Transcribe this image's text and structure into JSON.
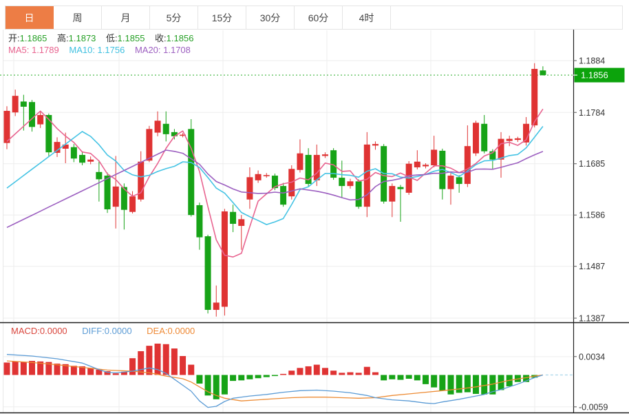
{
  "tabs": [
    {
      "key": "day",
      "label": "日",
      "selected": true
    },
    {
      "key": "week",
      "label": "周",
      "selected": false
    },
    {
      "key": "month",
      "label": "月",
      "selected": false
    },
    {
      "key": "5min",
      "label": "5分",
      "selected": false
    },
    {
      "key": "15min",
      "label": "15分",
      "selected": false
    },
    {
      "key": "30min",
      "label": "30分",
      "selected": false
    },
    {
      "key": "60min",
      "label": "60分",
      "selected": false
    },
    {
      "key": "4hour",
      "label": "4时",
      "selected": false
    }
  ],
  "ohlc": {
    "open_label": "开:",
    "open": "1.1865",
    "high_label": "高:",
    "high": "1.1873",
    "low_label": "低:",
    "low": "1.1855",
    "close_label": "收:",
    "close": "1.1856"
  },
  "ma_readout": {
    "ma5_label": "MA5: ",
    "ma5": "1.1789",
    "ma10_label": "MA10: ",
    "ma10": "1.1756",
    "ma20_label": "MA20: ",
    "ma20": "1.1708"
  },
  "macd_readout": {
    "macd_label": "MACD:",
    "macd": "0.0000",
    "diff_label": "DIFF:",
    "diff": "0.0000",
    "dea_label": "DEA:",
    "dea": "0.0000"
  },
  "colors": {
    "up": "#DF3333",
    "down": "#17A317",
    "ma5": "#E8638F",
    "ma10": "#44C3E4",
    "ma20": "#9C5FC0",
    "diff": "#5B9BD5",
    "dea": "#ED8B33",
    "tab_active_bg": "#ED7D45",
    "badge_bg": "#0CA30C",
    "current_line": "#3CB43C",
    "grid": "#EDEDED",
    "axis": "#222222",
    "text": "#333333"
  },
  "chart_data": [
    {
      "type": "candlestick",
      "title": "daily candlestick price panel",
      "ylabel": "price",
      "price_ticks": [
        1.1884,
        1.1784,
        1.1685,
        1.1586,
        1.1487,
        1.1387
      ],
      "current_price": 1.1856,
      "ma5_last": 1.1789,
      "ma10_last": 1.1756,
      "ma20_last": 1.1708,
      "ma_seeds": {
        "ma5": 1.1728,
        "ma10": 1.1638,
        "ma20": 1.1562
      },
      "candles": [
        [
          1.1725,
          1.1796,
          1.1713,
          1.1787
        ],
        [
          1.1784,
          1.1828,
          1.1777,
          1.1816
        ],
        [
          1.1805,
          1.1818,
          1.1749,
          1.1795
        ],
        [
          1.1804,
          1.1808,
          1.1747,
          1.1756
        ],
        [
          1.1761,
          1.1786,
          1.1754,
          1.1779
        ],
        [
          1.1779,
          1.1782,
          1.17,
          1.1707
        ],
        [
          1.1706,
          1.1736,
          1.1698,
          1.1727
        ],
        [
          1.1714,
          1.1745,
          1.1686,
          1.1722
        ],
        [
          1.1717,
          1.1723,
          1.1688,
          1.1695
        ],
        [
          1.1702,
          1.1709,
          1.1682,
          1.1687
        ],
        [
          1.1689,
          1.1699,
          1.1684,
          1.1693
        ],
        [
          1.1669,
          1.169,
          1.1612,
          1.1655
        ],
        [
          1.1662,
          1.1668,
          1.159,
          1.1597
        ],
        [
          1.1602,
          1.17,
          1.156,
          1.1641
        ],
        [
          1.164,
          1.1647,
          1.1558,
          1.1596
        ],
        [
          1.1592,
          1.1632,
          1.1589,
          1.1622
        ],
        [
          1.1616,
          1.1709,
          1.1612,
          1.1689
        ],
        [
          1.1691,
          1.1758,
          1.1688,
          1.1752
        ],
        [
          1.1745,
          1.1786,
          1.1738,
          1.1768
        ],
        [
          1.1762,
          1.1786,
          1.1728,
          1.1742
        ],
        [
          1.1746,
          1.1752,
          1.1732,
          1.1738
        ],
        [
          1.174,
          1.1744,
          1.1736,
          1.1741
        ],
        [
          1.1752,
          1.1771,
          1.1583,
          1.1586
        ],
        [
          1.1605,
          1.161,
          1.1519,
          1.1543
        ],
        [
          1.1545,
          1.1548,
          1.1396,
          1.1403
        ],
        [
          1.1403,
          1.145,
          1.139,
          1.1417
        ],
        [
          1.1409,
          1.1598,
          1.1392,
          1.1593
        ],
        [
          1.1592,
          1.1606,
          1.1553,
          1.1569
        ],
        [
          1.1565,
          1.1586,
          1.1519,
          1.1578
        ],
        [
          1.1616,
          1.1678,
          1.1598,
          1.1659
        ],
        [
          1.1653,
          1.1672,
          1.1648,
          1.1665
        ],
        [
          1.1662,
          1.1667,
          1.1658,
          1.1663
        ],
        [
          1.1662,
          1.1666,
          1.1634,
          1.1638
        ],
        [
          1.1642,
          1.1648,
          1.1602,
          1.1606
        ],
        [
          1.1622,
          1.1682,
          1.1616,
          1.1675
        ],
        [
          1.1673,
          1.1732,
          1.1668,
          1.1705
        ],
        [
          1.1702,
          1.1715,
          1.164,
          1.1646
        ],
        [
          1.1653,
          1.1722,
          1.1642,
          1.1702
        ],
        [
          1.17,
          1.1707,
          1.1696,
          1.1703
        ],
        [
          1.1711,
          1.1715,
          1.1654,
          1.1658
        ],
        [
          1.1658,
          1.1691,
          1.162,
          1.1642
        ],
        [
          1.1642,
          1.1656,
          1.1637,
          1.1651
        ],
        [
          1.1651,
          1.1655,
          1.1598,
          1.1602
        ],
        [
          1.1602,
          1.1746,
          1.1582,
          1.1722
        ],
        [
          1.172,
          1.1728,
          1.1712,
          1.1723
        ],
        [
          1.1719,
          1.1723,
          1.1608,
          1.1612
        ],
        [
          1.1612,
          1.1647,
          1.1582,
          1.1642
        ],
        [
          1.164,
          1.1644,
          1.1573,
          1.1636
        ],
        [
          1.1629,
          1.169,
          1.1625,
          1.1685
        ],
        [
          1.1678,
          1.1711,
          1.1674,
          1.1689
        ],
        [
          1.168,
          1.1686,
          1.1676,
          1.1683
        ],
        [
          1.1682,
          1.1739,
          1.1678,
          1.1712
        ],
        [
          1.171,
          1.1714,
          1.1616,
          1.1636
        ],
        [
          1.1636,
          1.1668,
          1.1606,
          1.1662
        ],
        [
          1.1659,
          1.1663,
          1.1629,
          1.1646
        ],
        [
          1.1646,
          1.1759,
          1.164,
          1.1719
        ],
        [
          1.1705,
          1.1768,
          1.17,
          1.1764
        ],
        [
          1.1762,
          1.1779,
          1.1705,
          1.1709
        ],
        [
          1.1709,
          1.1713,
          1.1675,
          1.1693
        ],
        [
          1.1693,
          1.1746,
          1.1658,
          1.1733
        ],
        [
          1.1729,
          1.1739,
          1.1719,
          1.1733
        ],
        [
          1.1731,
          1.1737,
          1.1727,
          1.1734
        ],
        [
          1.1726,
          1.1775,
          1.172,
          1.1762
        ],
        [
          1.1759,
          1.1879,
          1.1755,
          1.1868
        ],
        [
          1.1865,
          1.1873,
          1.1855,
          1.1856
        ]
      ]
    },
    {
      "type": "bar",
      "title": "MACD panel",
      "ticks": [
        0.0034,
        -0.0059
      ],
      "macd_last": 0.0,
      "diff_last": 0.0,
      "dea_last": 0.0,
      "hist": [
        0.0023,
        0.0025,
        0.0024,
        0.0026,
        0.0025,
        0.0024,
        0.0021,
        0.002,
        0.0017,
        0.0016,
        0.0013,
        0.001,
        0.0007,
        0.0003,
        0.0006,
        0.0031,
        0.0044,
        0.0054,
        0.0058,
        0.0057,
        0.0049,
        0.0035,
        0.0019,
        -0.0016,
        -0.0038,
        -0.0045,
        -0.0036,
        -0.0011,
        -0.001,
        -0.0008,
        -0.0006,
        -0.0004,
        -0.0002,
        0.0002,
        0.0008,
        0.0013,
        0.0016,
        0.0019,
        0.0013,
        0.0008,
        0.0004,
        0.0005,
        0.0004,
        0.0015,
        0.0005,
        -0.001,
        -0.0008,
        -0.0009,
        -0.0007,
        -0.001,
        -0.0017,
        -0.0023,
        -0.0029,
        -0.0036,
        -0.0033,
        -0.0032,
        -0.0035,
        -0.0036,
        -0.0036,
        -0.0028,
        -0.0021,
        -0.0013,
        -0.0013,
        -0.0005,
        0.0
      ],
      "diff_points": [
        [
          0,
          0.0038
        ],
        [
          3,
          0.0035
        ],
        [
          6,
          0.003
        ],
        [
          9,
          0.0022
        ],
        [
          11,
          0.001
        ],
        [
          12,
          0.0005
        ],
        [
          13,
          0.0004
        ],
        [
          15,
          0.0007
        ],
        [
          17,
          0.0013
        ],
        [
          18,
          0.001
        ],
        [
          19,
          0.0003
        ],
        [
          20,
          -0.0008
        ],
        [
          22,
          -0.003
        ],
        [
          23,
          -0.0048
        ],
        [
          24,
          -0.006
        ],
        [
          25,
          -0.0058
        ],
        [
          26,
          -0.0049
        ],
        [
          27,
          -0.0043
        ],
        [
          29,
          -0.0039
        ],
        [
          31,
          -0.0036
        ],
        [
          33,
          -0.0032
        ],
        [
          35,
          -0.0029
        ],
        [
          37,
          -0.0028
        ],
        [
          39,
          -0.003
        ],
        [
          41,
          -0.0033
        ],
        [
          43,
          -0.0038
        ],
        [
          44,
          -0.0042
        ],
        [
          46,
          -0.0046
        ],
        [
          48,
          -0.0048
        ],
        [
          50,
          -0.0052
        ],
        [
          51,
          -0.0053
        ],
        [
          52,
          -0.005
        ],
        [
          54,
          -0.0045
        ],
        [
          56,
          -0.0039
        ],
        [
          57,
          -0.0036
        ],
        [
          58,
          -0.0031
        ],
        [
          59,
          -0.0027
        ],
        [
          60,
          -0.0022
        ],
        [
          61,
          -0.0017
        ],
        [
          62,
          -0.0011
        ],
        [
          63,
          -0.0005
        ],
        [
          64,
          0.0
        ]
      ],
      "dea_points": [
        [
          0,
          0.0026
        ],
        [
          3,
          0.0023
        ],
        [
          6,
          0.0019
        ],
        [
          9,
          0.0014
        ],
        [
          12,
          0.0009
        ],
        [
          15,
          0.0007
        ],
        [
          17,
          0.0004
        ],
        [
          18,
          0.0001
        ],
        [
          19,
          -0.0002
        ],
        [
          21,
          -0.0007
        ],
        [
          22,
          -0.0013
        ],
        [
          23,
          -0.0022
        ],
        [
          24,
          -0.0031
        ],
        [
          25,
          -0.0038
        ],
        [
          26,
          -0.0043
        ],
        [
          28,
          -0.0048
        ],
        [
          30,
          -0.0046
        ],
        [
          32,
          -0.0044
        ],
        [
          34,
          -0.0042
        ],
        [
          36,
          -0.0041
        ],
        [
          38,
          -0.0041
        ],
        [
          40,
          -0.0042
        ],
        [
          42,
          -0.0043
        ],
        [
          44,
          -0.0042
        ],
        [
          46,
          -0.0038
        ],
        [
          48,
          -0.0035
        ],
        [
          50,
          -0.0032
        ],
        [
          52,
          -0.0029
        ],
        [
          54,
          -0.0026
        ],
        [
          56,
          -0.0022
        ],
        [
          58,
          -0.0017
        ],
        [
          60,
          -0.001
        ],
        [
          62,
          -0.0005
        ],
        [
          63,
          -0.0002
        ],
        [
          64,
          0.0
        ]
      ]
    }
  ]
}
